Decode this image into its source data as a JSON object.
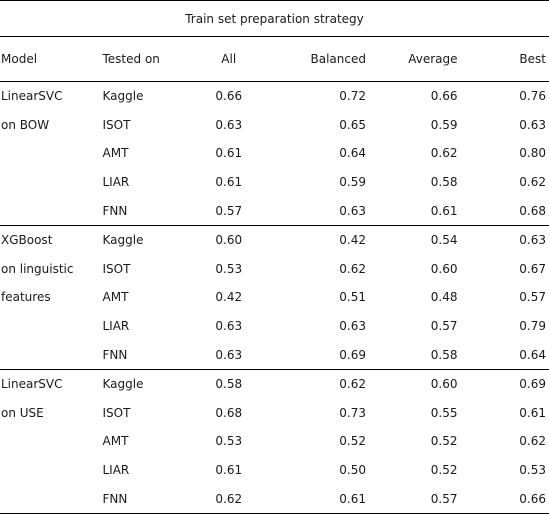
{
  "caption": "Train set preparation strategy",
  "headers": {
    "model": "Model",
    "tested_on": "Tested on",
    "all": "All",
    "balanced": "Balanced",
    "average": "Average",
    "best": "Best"
  },
  "groups": [
    {
      "rows": [
        {
          "model": "LinearSVC",
          "tested": "Kaggle",
          "all": "0.66",
          "balanced": "0.72",
          "average": "0.66",
          "best": "0.76"
        },
        {
          "model": "on BOW",
          "tested": "ISOT",
          "all": "0.63",
          "balanced": "0.65",
          "average": "0.59",
          "best": "0.63"
        },
        {
          "model": "",
          "tested": "AMT",
          "all": "0.61",
          "balanced": "0.64",
          "average": "0.62",
          "best": "0.80"
        },
        {
          "model": "",
          "tested": "LIAR",
          "all": "0.61",
          "balanced": "0.59",
          "average": "0.58",
          "best": "0.62"
        },
        {
          "model": "",
          "tested": "FNN",
          "all": "0.57",
          "balanced": "0.63",
          "average": "0.61",
          "best": "0.68"
        }
      ]
    },
    {
      "rows": [
        {
          "model": "XGBoost",
          "tested": "Kaggle",
          "all": "0.60",
          "balanced": "0.42",
          "average": "0.54",
          "best": "0.63"
        },
        {
          "model": "on linguistic",
          "tested": "ISOT",
          "all": "0.53",
          "balanced": "0.62",
          "average": "0.60",
          "best": "0.67"
        },
        {
          "model": "features",
          "tested": "AMT",
          "all": "0.42",
          "balanced": "0.51",
          "average": "0.48",
          "best": "0.57"
        },
        {
          "model": "",
          "tested": "LIAR",
          "all": "0.63",
          "balanced": "0.63",
          "average": "0.57",
          "best": "0.79"
        },
        {
          "model": "",
          "tested": "FNN",
          "all": "0.63",
          "balanced": "0.69",
          "average": "0.58",
          "best": "0.64"
        }
      ]
    },
    {
      "rows": [
        {
          "model": "LinearSVC",
          "tested": "Kaggle",
          "all": "0.58",
          "balanced": "0.62",
          "average": "0.60",
          "best": "0.69"
        },
        {
          "model": "on USE",
          "tested": "ISOT",
          "all": "0.68",
          "balanced": "0.73",
          "average": "0.55",
          "best": "0.61"
        },
        {
          "model": "",
          "tested": "AMT",
          "all": "0.53",
          "balanced": "0.52",
          "average": "0.52",
          "best": "0.62"
        },
        {
          "model": "",
          "tested": "LIAR",
          "all": "0.61",
          "balanced": "0.50",
          "average": "0.52",
          "best": "0.53"
        },
        {
          "model": "",
          "tested": "FNN",
          "all": "0.62",
          "balanced": "0.61",
          "average": "0.57",
          "best": "0.66"
        }
      ]
    }
  ]
}
